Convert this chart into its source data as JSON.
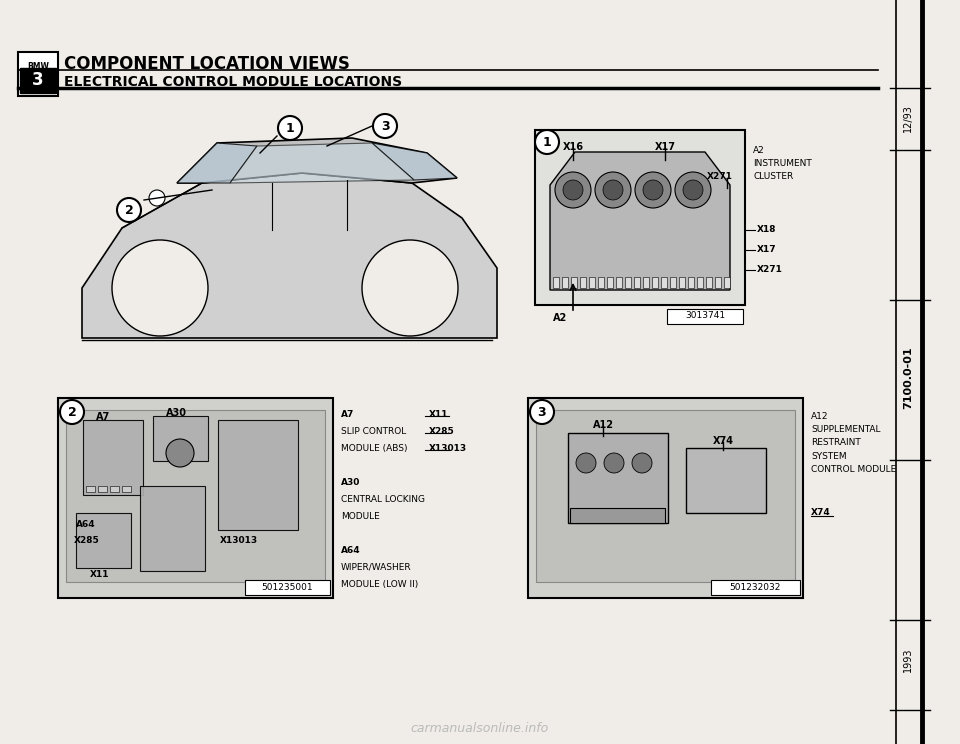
{
  "bg_color": "#f0ede8",
  "title1": "COMPONENT LOCATION VIEWS",
  "title2": "ELECTRICAL CONTROL MODULE LOCATIONS",
  "right_top": "12/93",
  "right_mid": "7100.0-01",
  "right_bot": "1993",
  "watermark": "carmanualsonline.info",
  "diagram1_right_label": "A2\nINSTRUMENT\nCLUSTER",
  "diagram1_ref": "3013741",
  "diagram2_ref": "501235001",
  "diagram3_right_label": "A12\nSUPPLEMENTAL\nRESTRAINT\nSYSTEM\nCONTROL MODULE",
  "diagram3_right_x74": "X74",
  "diagram3_ref": "501232032",
  "d2_texts_left": [
    "A7",
    "SLIP CONTROL",
    "MODULE (ABS)",
    "",
    "A30",
    "CENTRAL LOCKING",
    "MODULE",
    "",
    "A64",
    "WIPER/WASHER",
    "MODULE (LOW II)"
  ],
  "d2_texts_right": [
    "X11",
    "X285",
    "X13013",
    "",
    "",
    "",
    "",
    "",
    "",
    "",
    ""
  ]
}
